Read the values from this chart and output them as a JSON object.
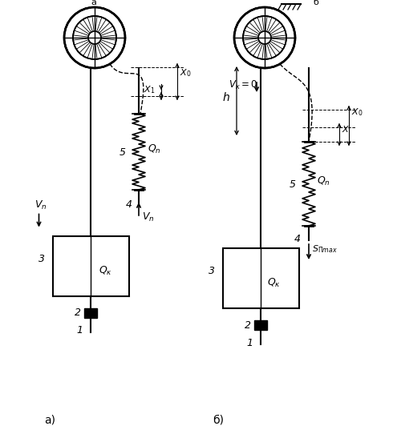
{
  "background": "#ffffff",
  "line_color": "#000000",
  "fig_width": 4.9,
  "fig_height": 5.47,
  "dpi": 100,
  "label_a": "а)",
  "label_b": "б)"
}
